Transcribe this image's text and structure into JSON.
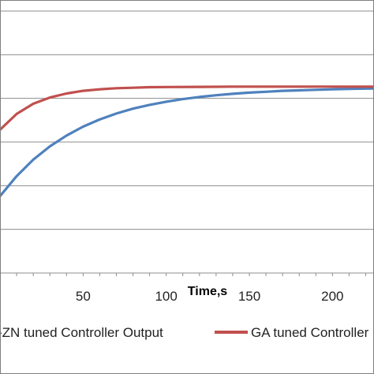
{
  "chart_data": {
    "type": "line",
    "title": "",
    "xlabel": "Time,s",
    "ylabel": "",
    "xlim": [
      0,
      225
    ],
    "ylim": [
      0,
      1.5
    ],
    "grid": true,
    "legend_position": "bottom",
    "x_ticks": [
      50,
      100,
      150,
      200
    ],
    "x_tick_labels": [
      "50",
      "100",
      "150",
      "200"
    ],
    "y_gridlines": [
      0.25,
      0.5,
      0.75,
      1.0,
      1.25,
      1.5
    ],
    "series": [
      {
        "name": "-ZN tuned Controller Output",
        "color": "#4f81bd",
        "x": [
          0,
          10,
          20,
          30,
          40,
          50,
          60,
          70,
          80,
          90,
          100,
          110,
          120,
          130,
          140,
          150,
          160,
          170,
          180,
          190,
          200,
          210,
          220,
          225
        ],
        "y": [
          0.44,
          0.555,
          0.649,
          0.725,
          0.787,
          0.838,
          0.879,
          0.913,
          0.941,
          0.963,
          0.981,
          0.996,
          1.008,
          1.018,
          1.026,
          1.033,
          1.038,
          1.043,
          1.046,
          1.049,
          1.052,
          1.054,
          1.056,
          1.057
        ]
      },
      {
        "name": "GA tuned Controller",
        "color": "#c0504d",
        "x": [
          0,
          10,
          20,
          30,
          40,
          50,
          60,
          70,
          80,
          90,
          100,
          120,
          140,
          160,
          180,
          200,
          225
        ],
        "y": [
          0.82,
          0.911,
          0.969,
          1.005,
          1.028,
          1.043,
          1.052,
          1.058,
          1.061,
          1.064,
          1.065,
          1.066,
          1.067,
          1.067,
          1.067,
          1.067,
          1.067
        ]
      }
    ]
  }
}
